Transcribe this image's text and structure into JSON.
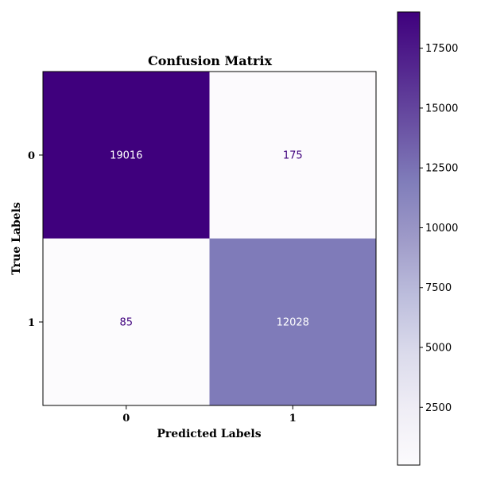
{
  "chart_data": {
    "type": "heatmap",
    "title": "Confusion Matrix",
    "xlabel": "Predicted Labels",
    "ylabel": "True Labels",
    "x_categories": [
      "0",
      "1"
    ],
    "y_categories": [
      "0",
      "1"
    ],
    "values": [
      [
        19016,
        175
      ],
      [
        85,
        12028
      ]
    ],
    "colormap": "Purples",
    "colorbar": {
      "vmin": 85,
      "vmax": 19016,
      "ticks": [
        2500,
        5000,
        7500,
        10000,
        12500,
        15000,
        17500
      ],
      "tick_labels": [
        "2500",
        "5000",
        "7500",
        "10000",
        "12500",
        "15000",
        "17500"
      ]
    },
    "grid": false,
    "legend": "none"
  },
  "colors": {
    "low": "#fcfbfd",
    "high": "#3f007d",
    "text_dark": "#3f007d",
    "text_light": "#ffffff"
  }
}
